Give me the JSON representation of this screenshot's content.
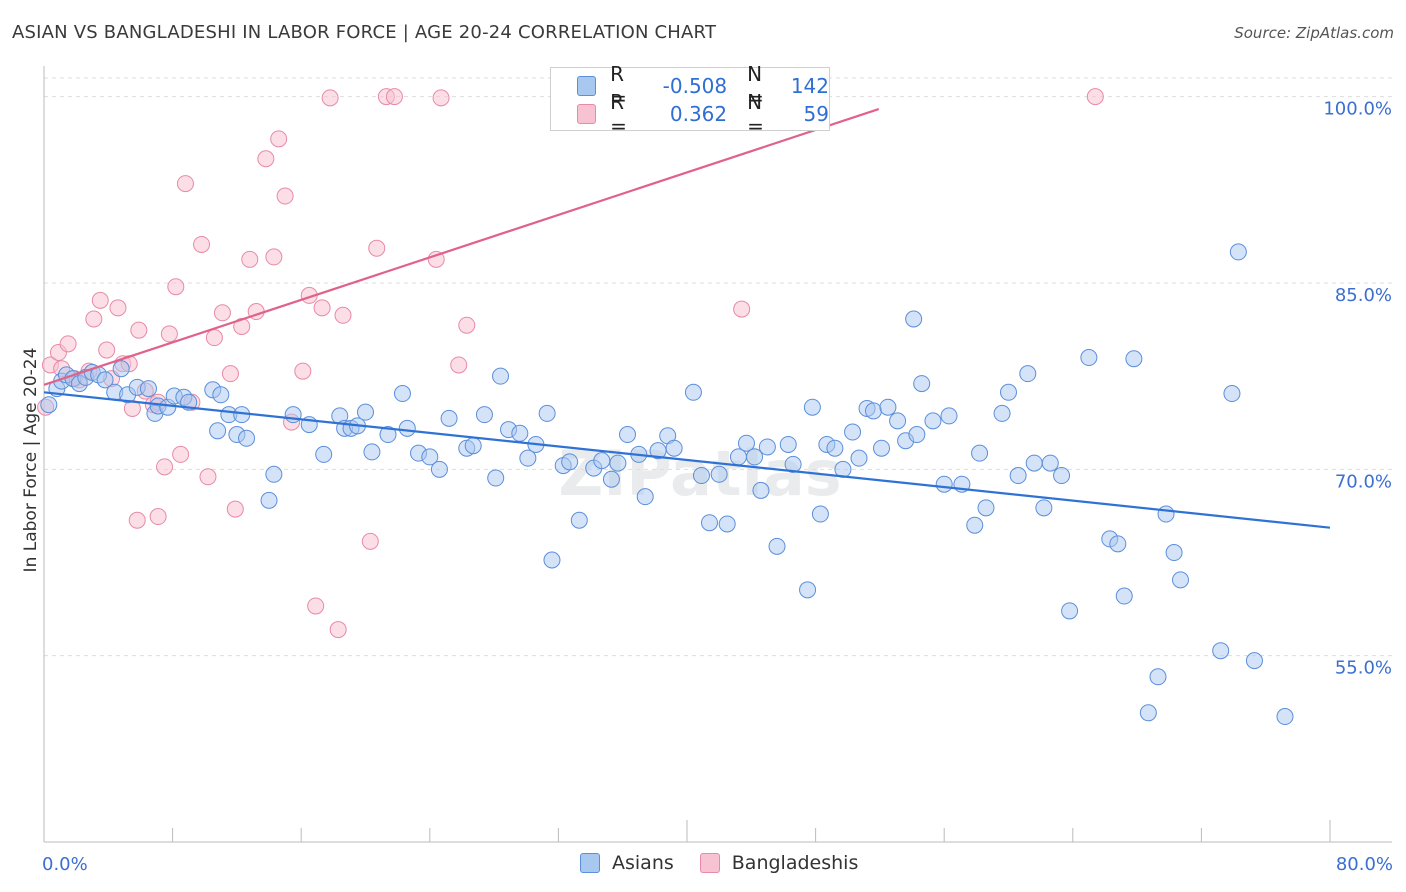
{
  "title": "ASIAN VS BANGLADESHI IN LABOR FORCE | AGE 20-24 CORRELATION CHART",
  "source": "Source: ZipAtlas.com",
  "watermark": "ZIPatlas",
  "legend": {
    "rows": [
      {
        "r_label": "R =",
        "r_value": "-0.508",
        "n_label": "N =",
        "n_value": "142"
      },
      {
        "r_label": "R =",
        "r_value": "0.362",
        "n_label": "N =",
        "n_value": "59"
      }
    ]
  },
  "bottom_legend": [
    "Asians",
    "Bangladeshis"
  ],
  "colors": {
    "asian_fill": "#a9c8f0",
    "asian_stroke": "#5b8fdb",
    "asian_line": "#2f72d6",
    "bangla_fill": "#f7c3d2",
    "bangla_stroke": "#e88aa8",
    "bangla_line": "#e0628a",
    "grid": "#dddddd",
    "tick_text": "#3b6fd0"
  },
  "chart_data": {
    "type": "scatter",
    "title": "ASIAN VS BANGLADESHI IN LABOR FORCE | AGE 20-24 CORRELATION CHART",
    "xlabel": "",
    "ylabel": "In Labor Force | Age 20-24",
    "xlim": [
      0,
      80
    ],
    "ylim": [
      40,
      101.5
    ],
    "x_tick_labels": [
      "0.0%",
      "80.0%"
    ],
    "y_ticks": [
      55,
      70,
      85,
      100
    ],
    "y_tick_labels": [
      "55.0%",
      "70.0%",
      "85.0%",
      "100.0%"
    ],
    "grid": true,
    "series": [
      {
        "name": "Asians",
        "r": -0.508,
        "n": 142,
        "trend": {
          "x": [
            0,
            80
          ],
          "y": [
            76.2,
            65.3
          ]
        },
        "points": [
          [
            0.3,
            75.2
          ],
          [
            0.8,
            76.5
          ],
          [
            1.1,
            77.1
          ],
          [
            1.4,
            77.6
          ],
          [
            1.8,
            77.3
          ],
          [
            2.2,
            76.9
          ],
          [
            2.6,
            77.4
          ],
          [
            3.0,
            77.8
          ],
          [
            3.4,
            77.6
          ],
          [
            3.8,
            77.2
          ],
          [
            4.4,
            76.2
          ],
          [
            4.8,
            78.1
          ],
          [
            5.2,
            76.0
          ],
          [
            5.8,
            76.6
          ],
          [
            6.5,
            76.5
          ],
          [
            6.9,
            74.5
          ],
          [
            7.1,
            75.1
          ],
          [
            7.7,
            75.0
          ],
          [
            8.1,
            75.9
          ],
          [
            8.7,
            75.8
          ],
          [
            9.0,
            75.4
          ],
          [
            10.5,
            76.4
          ],
          [
            10.8,
            73.1
          ],
          [
            11.0,
            76.0
          ],
          [
            11.5,
            74.4
          ],
          [
            12.0,
            72.8
          ],
          [
            12.3,
            74.4
          ],
          [
            12.6,
            72.5
          ],
          [
            14.0,
            67.5
          ],
          [
            14.3,
            69.6
          ],
          [
            15.5,
            74.4
          ],
          [
            16.5,
            73.6
          ],
          [
            17.4,
            71.2
          ],
          [
            18.4,
            74.3
          ],
          [
            18.7,
            73.3
          ],
          [
            19.1,
            73.3
          ],
          [
            19.5,
            73.5
          ],
          [
            20.0,
            74.6
          ],
          [
            20.4,
            71.4
          ],
          [
            21.4,
            72.8
          ],
          [
            22.3,
            76.1
          ],
          [
            22.6,
            73.3
          ],
          [
            23.3,
            71.3
          ],
          [
            24.0,
            71.0
          ],
          [
            24.6,
            70.0
          ],
          [
            25.2,
            74.1
          ],
          [
            26.3,
            71.7
          ],
          [
            26.7,
            71.9
          ],
          [
            27.4,
            74.4
          ],
          [
            28.1,
            69.3
          ],
          [
            28.4,
            77.5
          ],
          [
            28.9,
            73.2
          ],
          [
            29.6,
            72.9
          ],
          [
            30.1,
            70.9
          ],
          [
            30.6,
            72.0
          ],
          [
            31.3,
            74.5
          ],
          [
            31.6,
            62.7
          ],
          [
            32.3,
            70.3
          ],
          [
            32.7,
            70.6
          ],
          [
            33.3,
            65.9
          ],
          [
            34.2,
            70.1
          ],
          [
            34.7,
            70.7
          ],
          [
            35.3,
            69.2
          ],
          [
            35.7,
            70.5
          ],
          [
            36.3,
            72.8
          ],
          [
            37.0,
            71.2
          ],
          [
            37.4,
            67.8
          ],
          [
            38.2,
            71.5
          ],
          [
            38.8,
            72.7
          ],
          [
            39.2,
            71.7
          ],
          [
            40.4,
            76.2
          ],
          [
            40.9,
            69.5
          ],
          [
            41.4,
            65.7
          ],
          [
            42.0,
            69.6
          ],
          [
            42.5,
            65.6
          ],
          [
            43.2,
            71.0
          ],
          [
            43.7,
            72.1
          ],
          [
            44.2,
            71.0
          ],
          [
            44.6,
            68.3
          ],
          [
            45.0,
            71.8
          ],
          [
            45.6,
            63.8
          ],
          [
            46.3,
            72.0
          ],
          [
            46.6,
            70.4
          ],
          [
            47.5,
            60.3
          ],
          [
            47.8,
            75.0
          ],
          [
            48.3,
            66.4
          ],
          [
            48.7,
            72.0
          ],
          [
            49.2,
            71.7
          ],
          [
            49.7,
            70.0
          ],
          [
            50.3,
            73.0
          ],
          [
            50.7,
            70.9
          ],
          [
            51.2,
            74.9
          ],
          [
            51.6,
            74.7
          ],
          [
            52.1,
            71.7
          ],
          [
            52.5,
            75.0
          ],
          [
            53.1,
            73.9
          ],
          [
            53.6,
            72.3
          ],
          [
            54.3,
            72.8
          ],
          [
            54.6,
            76.9
          ],
          [
            55.3,
            73.9
          ],
          [
            56.0,
            68.8
          ],
          [
            56.3,
            74.3
          ],
          [
            57.1,
            68.8
          ],
          [
            57.9,
            65.5
          ],
          [
            58.2,
            71.3
          ],
          [
            58.6,
            66.9
          ],
          [
            59.6,
            74.5
          ],
          [
            60.0,
            76.2
          ],
          [
            60.6,
            69.5
          ],
          [
            61.2,
            77.7
          ],
          [
            61.6,
            70.5
          ],
          [
            62.2,
            66.9
          ],
          [
            62.6,
            70.5
          ],
          [
            63.3,
            69.5
          ],
          [
            63.8,
            58.6
          ],
          [
            65.0,
            79.0
          ],
          [
            66.3,
            64.4
          ],
          [
            66.8,
            64.0
          ],
          [
            67.2,
            59.8
          ],
          [
            67.8,
            78.9
          ],
          [
            68.7,
            50.4
          ],
          [
            69.3,
            53.3
          ],
          [
            69.8,
            66.4
          ],
          [
            70.3,
            63.3
          ],
          [
            70.7,
            61.1
          ],
          [
            73.2,
            55.4
          ],
          [
            73.9,
            76.1
          ],
          [
            74.3,
            87.5
          ],
          [
            75.3,
            54.6
          ],
          [
            77.2,
            50.1
          ],
          [
            54.1,
            82.1
          ]
        ]
      },
      {
        "name": "Bangladeshis",
        "r": 0.362,
        "n": 59,
        "trend": {
          "x": [
            0,
            80
          ],
          "y": [
            76.8,
            111.0
          ]
        },
        "points": [
          [
            0.1,
            75.0
          ],
          [
            0.4,
            78.4
          ],
          [
            0.9,
            79.4
          ],
          [
            1.1,
            78.1
          ],
          [
            1.5,
            80.1
          ],
          [
            1.9,
            77.3
          ],
          [
            2.2,
            77.2
          ],
          [
            2.8,
            77.9
          ],
          [
            3.1,
            82.1
          ],
          [
            3.5,
            83.6
          ],
          [
            3.9,
            79.6
          ],
          [
            4.2,
            77.3
          ],
          [
            4.6,
            83.0
          ],
          [
            4.9,
            78.5
          ],
          [
            5.3,
            78.5
          ],
          [
            5.5,
            74.9
          ],
          [
            5.9,
            81.2
          ],
          [
            6.3,
            76.3
          ],
          [
            6.8,
            75.2
          ],
          [
            7.1,
            66.2
          ],
          [
            7.5,
            70.2
          ],
          [
            7.8,
            80.9
          ],
          [
            8.2,
            84.7
          ],
          [
            8.5,
            71.2
          ],
          [
            8.8,
            93.0
          ],
          [
            9.2,
            75.4
          ],
          [
            9.8,
            88.1
          ],
          [
            10.2,
            69.4
          ],
          [
            10.6,
            80.6
          ],
          [
            11.1,
            82.6
          ],
          [
            11.6,
            77.7
          ],
          [
            11.9,
            66.8
          ],
          [
            12.3,
            81.5
          ],
          [
            12.8,
            86.9
          ],
          [
            13.2,
            82.7
          ],
          [
            13.8,
            95.0
          ],
          [
            14.3,
            87.1
          ],
          [
            14.6,
            96.6
          ],
          [
            15.0,
            92.0
          ],
          [
            15.4,
            73.8
          ],
          [
            16.1,
            77.9
          ],
          [
            16.5,
            84.0
          ],
          [
            16.9,
            59.0
          ],
          [
            17.3,
            83.0
          ],
          [
            17.8,
            99.9
          ],
          [
            18.3,
            57.1
          ],
          [
            18.6,
            82.4
          ],
          [
            20.3,
            64.2
          ],
          [
            20.7,
            87.8
          ],
          [
            21.3,
            100.0
          ],
          [
            21.8,
            100.0
          ],
          [
            24.4,
            86.9
          ],
          [
            24.7,
            99.9
          ],
          [
            25.8,
            78.4
          ],
          [
            26.3,
            81.6
          ],
          [
            5.8,
            65.9
          ],
          [
            43.4,
            82.9
          ],
          [
            65.4,
            100.0
          ],
          [
            7.1,
            75.4
          ]
        ]
      }
    ]
  }
}
